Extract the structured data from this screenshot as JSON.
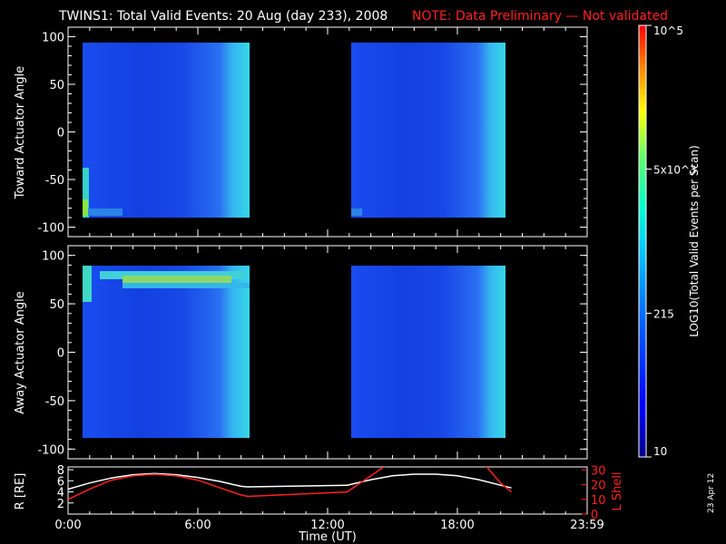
{
  "title": {
    "main": "TWINS1: Total Valid Events: 20 Aug (day 233), 2008",
    "note": "NOTE: Data Preliminary — Not validated"
  },
  "colorbar": {
    "label": "LOG10(Total Valid Events per Scan)",
    "ticks": [
      "10",
      "215",
      "5x10^3",
      "10^5"
    ],
    "colors": [
      "#00008c",
      "#0000ff",
      "#0066ff",
      "#00c8ff",
      "#00ffcc",
      "#66ff66",
      "#ffff00",
      "#ff8800",
      "#ff0000"
    ]
  },
  "stamp": "23 Apr 12",
  "chart_data": [
    {
      "type": "heatmap",
      "panel": "toward",
      "ylabel": "Toward Actuator Angle",
      "ylim": [
        -110,
        110
      ],
      "yticks": [
        "100",
        "50",
        "0",
        "-50",
        "-100"
      ],
      "xlim_hours": [
        0,
        24
      ],
      "data_blocks": [
        {
          "x_start_hours": 0.0,
          "x_end_hours": 8.3,
          "y_range_deg": [
            -90,
            90
          ],
          "level": "low"
        },
        {
          "x_start_hours": 12.9,
          "x_end_hours": 20.5,
          "y_range_deg": [
            -90,
            90
          ],
          "level": "low"
        }
      ]
    },
    {
      "type": "heatmap",
      "panel": "away",
      "ylabel": "Away Actuator Angle",
      "ylim": [
        -110,
        110
      ],
      "yticks": [
        "100",
        "50",
        "0",
        "-50",
        "-100"
      ],
      "xlim_hours": [
        0,
        24
      ],
      "data_blocks": [
        {
          "x_start_hours": 0.0,
          "x_end_hours": 8.3,
          "y_range_deg": [
            -90,
            90
          ],
          "level": "low"
        },
        {
          "x_start_hours": 12.9,
          "x_end_hours": 20.5,
          "y_range_deg": [
            -90,
            90
          ],
          "level": "low"
        }
      ]
    },
    {
      "type": "line",
      "panel": "orbit",
      "ylabel_left": "R [RE]",
      "ylabel_right": "L Shell",
      "yticks_left": [
        "8",
        "6",
        "4",
        "2"
      ],
      "yticks_right": [
        "30",
        "20",
        "10",
        "0"
      ],
      "ylim_left": [
        0,
        8.5
      ],
      "ylim_right": [
        0,
        32
      ],
      "xticks": [
        "0:00",
        "6:00",
        "12:00",
        "18:00",
        "23:59"
      ],
      "xlabel": "Time (UT)",
      "series": [
        {
          "name": "R",
          "color": "#ffffff",
          "x": [
            0,
            1,
            2,
            3,
            4,
            5,
            6,
            7,
            8,
            8.3,
            12.9,
            14,
            15,
            16,
            17,
            18,
            19,
            20,
            20.5
          ],
          "y": [
            4.5,
            5.6,
            6.5,
            7.1,
            7.3,
            7.1,
            6.6,
            5.9,
            5.0,
            4.9,
            5.2,
            6.2,
            6.9,
            7.2,
            7.2,
            6.9,
            6.2,
            5.2,
            4.7
          ]
        },
        {
          "name": "L Shell",
          "color": "#ff2020",
          "x": [
            0,
            1,
            2,
            3,
            4,
            5,
            6,
            7,
            8,
            8.3,
            12.9,
            14,
            14.7,
            19.3,
            20,
            20.5
          ],
          "y": [
            10,
            17,
            23,
            26,
            27,
            26,
            23,
            18,
            13,
            12,
            15,
            26,
            33,
            33,
            21,
            15
          ]
        }
      ]
    }
  ]
}
